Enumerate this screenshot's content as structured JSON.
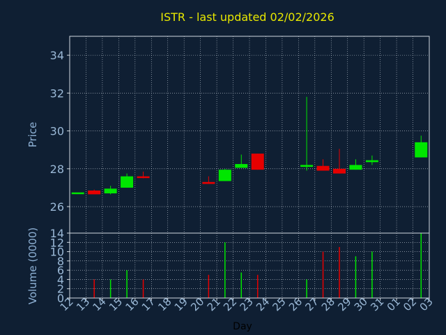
{
  "chart_data": {
    "type": "candlestick",
    "title": "ISTR - last updated 02/02/2026",
    "xlabel": "Day",
    "x_ticks": [
      "12",
      "13",
      "14",
      "15",
      "16",
      "17",
      "18",
      "19",
      "20",
      "21",
      "22",
      "23",
      "24",
      "25",
      "26",
      "27",
      "28",
      "29",
      "30",
      "31",
      "01",
      "02",
      "03"
    ],
    "price_panel": {
      "ylabel": "Price",
      "ylim": [
        24.6,
        35
      ],
      "y_ticks": [
        26,
        28,
        30,
        32,
        34
      ],
      "grid": true,
      "up_color": "#00e600",
      "down_color": "#e60000",
      "candles": [
        {
          "day": 12,
          "open": 26.75,
          "high": 26.75,
          "low": 26.75,
          "close": 26.75
        },
        {
          "day": 13,
          "open": 26.85,
          "high": 26.9,
          "low": 26.65,
          "close": 26.65
        },
        {
          "day": 14,
          "open": 26.7,
          "high": 27.1,
          "low": 26.65,
          "close": 26.95
        },
        {
          "day": 15,
          "open": 27.0,
          "high": 27.75,
          "low": 27.0,
          "close": 27.6
        },
        {
          "day": 16,
          "open": 27.6,
          "high": 27.85,
          "low": 27.5,
          "close": 27.55
        },
        {
          "day": 20,
          "open": 27.3,
          "high": 27.6,
          "low": 27.2,
          "close": 27.2
        },
        {
          "day": 21,
          "open": 27.35,
          "high": 28.0,
          "low": 27.35,
          "close": 27.95
        },
        {
          "day": 22,
          "open": 28.05,
          "high": 28.75,
          "low": 28.05,
          "close": 28.25
        },
        {
          "day": 23,
          "open": 28.8,
          "high": 28.8,
          "low": 27.95,
          "close": 27.95
        },
        {
          "day": 26,
          "open": 28.1,
          "high": 31.8,
          "low": 27.9,
          "close": 28.2
        },
        {
          "day": 27,
          "open": 28.15,
          "high": 28.5,
          "low": 27.9,
          "close": 27.9
        },
        {
          "day": 28,
          "open": 28.0,
          "high": 29.05,
          "low": 27.75,
          "close": 27.75
        },
        {
          "day": 29,
          "open": 27.95,
          "high": 28.5,
          "low": 27.95,
          "close": 28.2
        },
        {
          "day": 30,
          "open": 28.35,
          "high": 28.7,
          "low": 28.2,
          "close": 28.45
        },
        {
          "day": 2,
          "open": 28.6,
          "high": 29.75,
          "low": 28.6,
          "close": 29.4
        }
      ]
    },
    "volume_panel": {
      "ylabel": "Volume (0000)",
      "ylim": [
        0,
        14
      ],
      "y_ticks": [
        0,
        2,
        4,
        6,
        8,
        10,
        12,
        14
      ],
      "grid": true,
      "bars": [
        {
          "day": 13,
          "value": 4.0,
          "direction": "down"
        },
        {
          "day": 14,
          "value": 4.0,
          "direction": "up"
        },
        {
          "day": 15,
          "value": 6.0,
          "direction": "up"
        },
        {
          "day": 16,
          "value": 4.0,
          "direction": "down"
        },
        {
          "day": 20,
          "value": 5.0,
          "direction": "down"
        },
        {
          "day": 21,
          "value": 12.0,
          "direction": "up"
        },
        {
          "day": 22,
          "value": 5.5,
          "direction": "up"
        },
        {
          "day": 23,
          "value": 5.0,
          "direction": "down"
        },
        {
          "day": 26,
          "value": 4.0,
          "direction": "up"
        },
        {
          "day": 27,
          "value": 10.0,
          "direction": "down"
        },
        {
          "day": 28,
          "value": 11.0,
          "direction": "down"
        },
        {
          "day": 29,
          "value": 9.0,
          "direction": "up"
        },
        {
          "day": 30,
          "value": 10.0,
          "direction": "up"
        },
        {
          "day": 2,
          "value": 14.0,
          "direction": "up"
        }
      ]
    },
    "colors": {
      "background": "#0f1f33",
      "title": "#e8e800",
      "axis_text": "#8fb2d6",
      "tick_text": "#9ab8d6",
      "frame": "#d0d8e0",
      "grid": "#c9d2dc"
    }
  }
}
